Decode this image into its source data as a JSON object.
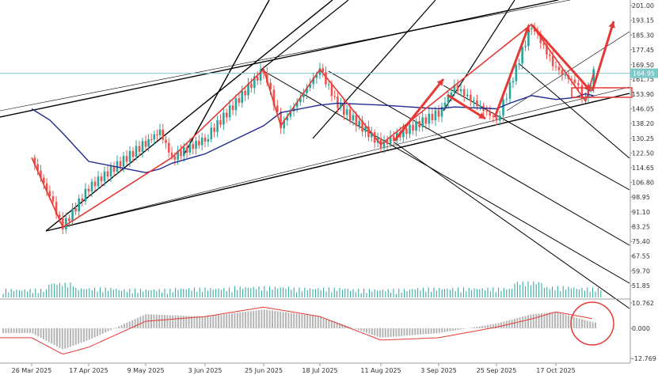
{
  "colors": {
    "up_candle": "#26a69a",
    "down_candle": "#ef5350",
    "moving_average": "#1f2a8f",
    "zigzag": "#e53935",
    "channel_lines": "#000000",
    "current_price_line": "#7fc8c8",
    "volume": "#26a69a",
    "macd_histogram": "#b5b5b5",
    "macd_signal": "#e53935",
    "annotation": "#e53935"
  },
  "chart_data": [
    {
      "type": "candlestick",
      "x_ticks": [
        "26 Mar 2025",
        "17 Apr 2025",
        "9 May 2025",
        "3 Jun 2025",
        "25 Jun 2025",
        "18 Jul 2025",
        "11 Aug 2025",
        "3 Sep 2025",
        "25 Sep 2025",
        "17 Oct 2025"
      ],
      "y_ticks": [
        "201.00",
        "193.15",
        "185.30",
        "177.45",
        "169.50",
        "161.75",
        "153.90",
        "146.05",
        "138.20",
        "130.25",
        "122.50",
        "114.65",
        "106.80",
        "98.95",
        "91.10",
        "83.25",
        "75.40",
        "67.55",
        "59.70",
        "51.85"
      ],
      "ylim": [
        51.85,
        201.0
      ],
      "current_price": "164.95",
      "dates": [
        "26 Mar 2025",
        "2 Apr 2025",
        "7 Apr 2025",
        "17 Apr 2025",
        "9 May 2025",
        "15 May 2025",
        "20 May 2025",
        "3 Jun 2025",
        "25 Jun 2025",
        "2 Jul 2025",
        "18 Jul 2025",
        "25 Jul 2025",
        "11 Aug 2025",
        "3 Sep 2025",
        "9 Sep 2025",
        "25 Sep 2025",
        "30 Sep 2025",
        "8 Oct 2025",
        "17 Oct 2025",
        "24 Oct 2025",
        "28 Oct 2025",
        "31 Oct 2025"
      ],
      "close": [
        120.0,
        99.0,
        83.0,
        104.0,
        128.0,
        134.0,
        120.0,
        130.0,
        167.0,
        137.0,
        167.0,
        148.0,
        127.0,
        144.0,
        158.0,
        140.0,
        158.0,
        191.0,
        167.0,
        160.0,
        150.0,
        164.95
      ],
      "moving_average": [
        146.0,
        140.0,
        133.0,
        118.0,
        112.0,
        114.0,
        117.0,
        122.0,
        137.0,
        144.0,
        148.0,
        149.0,
        148.0,
        146.0,
        147.0,
        146.0,
        149.0,
        153.0,
        151.0,
        152.0,
        154.0,
        153.0
      ]
    },
    {
      "type": "bar",
      "name": "Volume",
      "dates": [
        "26 Mar 2025",
        "7 Apr 2025",
        "17 Apr 2025",
        "9 May 2025",
        "3 Jun 2025",
        "25 Jun 2025",
        "18 Jul 2025",
        "11 Aug 2025",
        "3 Sep 2025",
        "25 Sep 2025",
        "8 Oct 2025",
        "17 Oct 2025",
        "31 Oct 2025"
      ],
      "values": [
        0.3,
        0.8,
        0.4,
        0.3,
        0.4,
        0.5,
        0.4,
        0.3,
        0.4,
        0.4,
        0.9,
        0.5,
        0.4
      ]
    },
    {
      "type": "bar",
      "name": "MACD",
      "y_ticks": [
        "10.762",
        "0.000",
        "-12.769"
      ],
      "ylim": [
        -12.769,
        10.762
      ],
      "dates": [
        "26 Mar 2025",
        "7 Apr 2025",
        "17 Apr 2025",
        "9 May 2025",
        "3 Jun 2025",
        "25 Jun 2025",
        "18 Jul 2025",
        "11 Aug 2025",
        "3 Sep 2025",
        "25 Sep 2025",
        "8 Oct 2025",
        "17 Oct 2025",
        "31 Oct 2025"
      ],
      "histogram": [
        -2.0,
        -9.0,
        -5.0,
        6.0,
        5.0,
        8.0,
        5.0,
        -4.0,
        -2.0,
        2.0,
        6.0,
        7.0,
        2.5
      ],
      "signal": [
        -4.0,
        -11.0,
        -8.0,
        3.0,
        5.0,
        9.0,
        5.0,
        -5.0,
        -4.0,
        0.5,
        4.0,
        7.0,
        4.0
      ]
    }
  ]
}
